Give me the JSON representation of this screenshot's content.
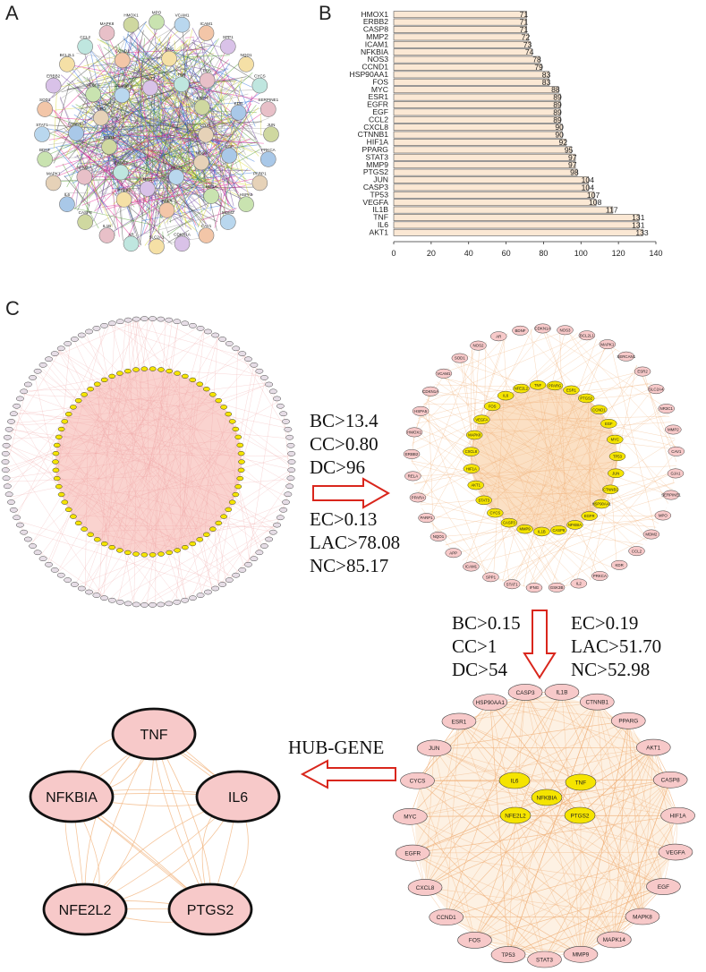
{
  "panels": {
    "a": "A",
    "b": "B",
    "c": "C"
  },
  "panel_a": {
    "nodes": [
      "MPO",
      "VCAM1",
      "ICAM1",
      "SPP1",
      "NQO1",
      "CYCS",
      "SERPINE1",
      "JUN",
      "PRKCA",
      "PARP1",
      "HSPA5",
      "MDM2",
      "CAV1",
      "CDKN1A",
      "SLC2A1",
      "AR",
      "IL1B",
      "CASP8",
      "IL6",
      "MAPK1",
      "BDNF",
      "STAT1",
      "SOD1",
      "ERBB2",
      "BCL2L1",
      "CCL2",
      "MAPK8",
      "HMOX1",
      "EGF",
      "NOS3",
      "HIF1A",
      "STAT3",
      "RELA",
      "MYC",
      "PTGS2",
      "CASP3",
      "NFKBIA",
      "ESR1",
      "CTNNB1",
      "TP53",
      "VEGFA",
      "PPARG",
      "CCND1",
      "AKT1",
      "IFNG",
      "TNF",
      "FOS",
      "EGFR",
      "KDR",
      "GJA1"
    ]
  },
  "chart_data": {
    "type": "bar",
    "orientation": "horizontal",
    "categories": [
      "HMOX1",
      "ERBB2",
      "CASP8",
      "MMP2",
      "ICAM1",
      "NFKBIA",
      "NOS3",
      "CCND1",
      "HSP90AA1",
      "FOS",
      "MYC",
      "ESR1",
      "EGFR",
      "EGF",
      "CCL2",
      "CXCL8",
      "CTNNB1",
      "HIF1A",
      "PPARG",
      "STAT3",
      "MMP9",
      "PTGS2",
      "JUN",
      "CASP3",
      "TP53",
      "VEGFA",
      "IL1B",
      "TNF",
      "IL6",
      "AKT1"
    ],
    "values": [
      71,
      71,
      71,
      72,
      73,
      74,
      78,
      79,
      83,
      83,
      88,
      89,
      89,
      89,
      89,
      90,
      90,
      92,
      95,
      97,
      97,
      98,
      104,
      104,
      107,
      108,
      117,
      131,
      131,
      133
    ],
    "xlim": [
      0,
      140
    ],
    "xticks": [
      "0",
      "20",
      "40",
      "60",
      "80",
      "100",
      "120",
      "140"
    ],
    "bar_color": "#fbe8d4",
    "title": "",
    "xlabel": "",
    "ylabel": ""
  },
  "criteria1": [
    "BC>13.4",
    "CC>0.80",
    "DC>96",
    "EC>0.13",
    "LAC>78.08",
    "NC>85.17"
  ],
  "criteria2_left": [
    "BC>0.15",
    "CC>1",
    "DC>54"
  ],
  "criteria2_right": [
    "EC>0.19",
    "LAC>51.70",
    "NC>52.98"
  ],
  "hub_label": "HUB-GENE",
  "net2": {
    "inner": [
      "IL6",
      "NFE2L2",
      "TNF",
      "PPARG",
      "ESR1",
      "PTGS2",
      "CCND1",
      "EGF",
      "MYC",
      "TP53",
      "JUN",
      "CTNNB1",
      "HSP90AA1",
      "EGFR",
      "NFKBIA",
      "CASP8",
      "IL1B",
      "MMP9",
      "CASP3",
      "CYCS",
      "STAT3",
      "AKT1",
      "HIF1A",
      "CXCL8",
      "MAPK8",
      "VEGFA",
      "FOS"
    ],
    "outer": [
      "AR",
      "BDNF",
      "CDKN1A",
      "NOS3",
      "BCL2L1",
      "MAPK1",
      "SERCAN1",
      "ESR2",
      "SLC2A4",
      "NR3C1",
      "MMP2",
      "CAV1",
      "GJA1",
      "SERPINE1",
      "MPO",
      "MDM2",
      "CCL2",
      "KDR",
      "PRKCA",
      "IL2",
      "GSK3B",
      "IFNG",
      "STAT1",
      "SPP1",
      "ICAM1",
      "APP",
      "NQO1",
      "PARP1",
      "PPARA",
      "RELA",
      "ERBB2",
      "HMOX1",
      "HSPA5",
      "CDKN1A",
      "VCAM1",
      "SOD1",
      "NOS2"
    ]
  },
  "net3": {
    "center": [
      "IL6",
      "TNF",
      "NFKBIA",
      "NFE2L2",
      "PTGS2"
    ],
    "outer": [
      "CASP3",
      "IL1B",
      "CTNNB1",
      "PPARG",
      "AKT1",
      "CASP8",
      "HIF1A",
      "VEGFA",
      "EGF",
      "MAPK8",
      "MAPK14",
      "MMP9",
      "STAT3",
      "TP53",
      "FOS",
      "CCND1",
      "CXCL8",
      "EGFR",
      "MYC",
      "CYCS",
      "JUN",
      "ESR1",
      "HSP90AA1"
    ]
  },
  "hub_genes": [
    "TNF",
    "IL6",
    "NFKBIA",
    "NFE2L2",
    "PTGS2"
  ],
  "colors": {
    "node_pink": "#f7c9c9",
    "node_yellow": "#f5e400",
    "arrow_red": "#d9261c",
    "edge_orange": "#f1b27a"
  }
}
